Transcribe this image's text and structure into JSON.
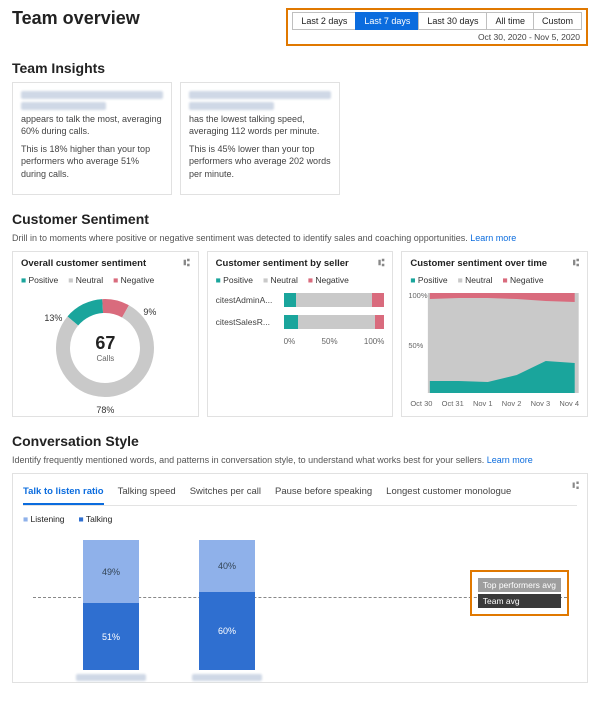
{
  "header": {
    "title": "Team overview",
    "date_label": "Oct 30, 2020 - Nov 5, 2020"
  },
  "range": {
    "items": [
      "Last 2 days",
      "Last 7 days",
      "Last 30 days",
      "All time",
      "Custom"
    ],
    "active_index": 1
  },
  "insights": {
    "title": "Team Insights",
    "cards": [
      {
        "line1": "appears to talk the most, averaging 60% during calls.",
        "line2": "This is 18% higher than your top performers who average 51% during calls."
      },
      {
        "line1": "has the lowest talking speed, averaging 112 words per minute.",
        "line2": "This is 45% lower than your top performers who average 202 words per minute."
      }
    ]
  },
  "sentiment": {
    "title": "Customer Sentiment",
    "subtitle_prefix": "Drill in to moments where positive or negative sentiment was detected to identify sales and coaching opportunities. ",
    "learn_more": "Learn more",
    "legend": {
      "positive": "Positive",
      "neutral": "Neutral",
      "negative": "Negative"
    },
    "colors": {
      "positive": "#1aa59c",
      "neutral": "#c9c9c9",
      "negative": "#d96b7d",
      "gridline": "#eeeeee"
    },
    "overall": {
      "title": "Overall customer sentiment",
      "center_value": "67",
      "center_label": "Calls",
      "positive_pct": 13,
      "neutral_pct": 78,
      "negative_pct": 9
    },
    "by_seller": {
      "title": "Customer sentiment by seller",
      "axis": [
        "0%",
        "50%",
        "100%"
      ],
      "rows": [
        {
          "name": "citestAdminA...",
          "pos": 12,
          "neu": 76,
          "neg": 12
        },
        {
          "name": "citestSalesR...",
          "pos": 14,
          "neu": 77,
          "neg": 9
        }
      ]
    },
    "over_time": {
      "title": "Customer sentiment over time",
      "y_labels": [
        "100%",
        "50%"
      ],
      "x_labels": [
        "Oct 30",
        "Oct 31",
        "Nov 1",
        "Nov 2",
        "Nov 3",
        "Nov 4"
      ],
      "positive_series": [
        12,
        12,
        11,
        18,
        32,
        30
      ],
      "negative_series": [
        6,
        5,
        5,
        6,
        8,
        9
      ]
    }
  },
  "conversation": {
    "title": "Conversation Style",
    "subtitle_prefix": "Identify frequently mentioned words, and patterns in conversation style, to understand what works best for your sellers. ",
    "learn_more": "Learn more",
    "tabs": [
      "Talk to listen ratio",
      "Talking speed",
      "Switches per call",
      "Pause before speaking",
      "Longest customer monologue"
    ],
    "active_tab": 0,
    "legend": {
      "listening": "Listening",
      "talking": "Talking"
    },
    "colors": {
      "listening": "#8fb1ea",
      "talking": "#2f6fd0",
      "avg_line": "#888888"
    },
    "bars": [
      {
        "listen": 49,
        "talk": 51
      },
      {
        "listen": 40,
        "talk": 60
      }
    ],
    "avg_badges": {
      "top": "Top performers avg",
      "team": "Team avg"
    },
    "team_avg_line_pct": 55
  }
}
